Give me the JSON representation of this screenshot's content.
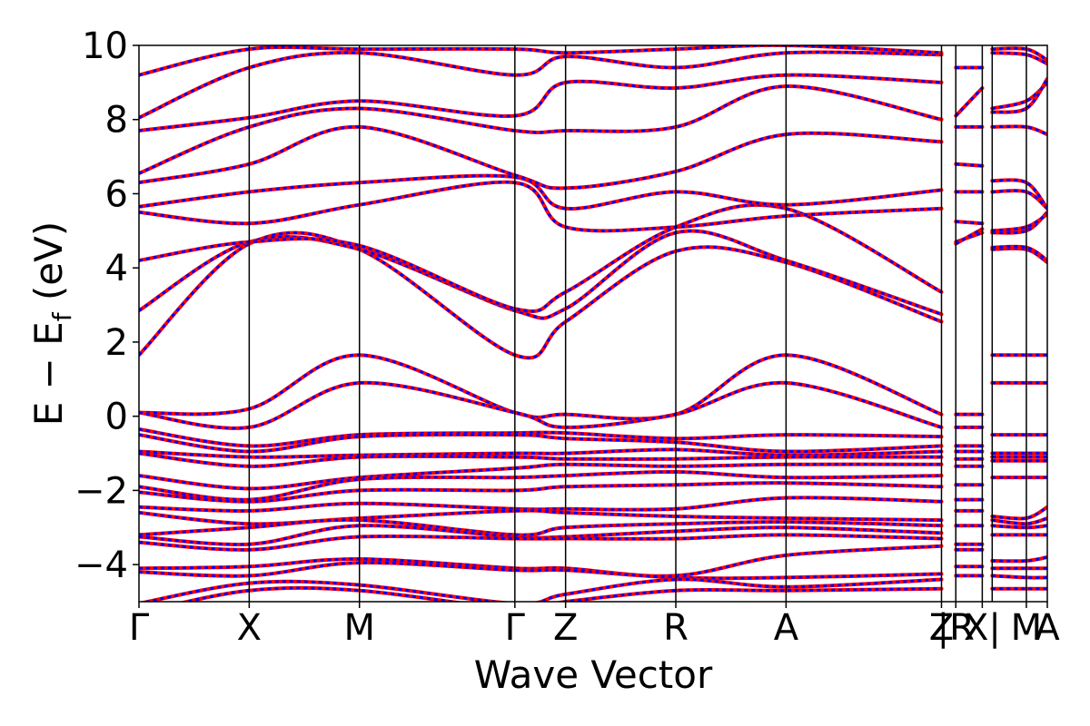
{
  "chart_data": {
    "type": "line",
    "xlabel": "Wave Vector",
    "ylabel": "E − E",
    "ylabel_subscript": "f",
    "ylabel_unit": " (eV)",
    "ylim": [
      -5,
      10
    ],
    "yticks": [
      -4,
      -2,
      0,
      2,
      4,
      6,
      8,
      10
    ],
    "ytick_labels": [
      "−4",
      "−2",
      "0",
      "2",
      "4",
      "6",
      "8",
      "10"
    ],
    "kpath": [
      {
        "label": "Γ",
        "x": 0.0
      },
      {
        "label": "X",
        "x": 1.0
      },
      {
        "label": "M",
        "x": 2.0
      },
      {
        "label": "Γ",
        "x": 3.41
      },
      {
        "label": "Z",
        "x": 3.87
      },
      {
        "label": "R",
        "x": 4.87
      },
      {
        "label": "A",
        "x": 5.87
      },
      {
        "label": "Z",
        "x": 7.28
      },
      {
        "label": "|R",
        "x": 7.41
      },
      {
        "label": "X|",
        "x": 7.65
      },
      {
        "label": "M",
        "x": 8.05
      },
      {
        "label": "A",
        "x": 8.24
      }
    ],
    "segment_breaks": [
      7.28,
      7.74
    ],
    "xlim": [
      0,
      8.24
    ],
    "grid": false,
    "series": [
      {
        "color": "#ff0000",
        "style": "solid",
        "width": 4
      },
      {
        "color": "#0000ff",
        "style": "dashed",
        "width": 3
      }
    ],
    "bands": [
      {
        "x": [
          0,
          1,
          2,
          3.41,
          3.87,
          4.87,
          5.87,
          7.28
        ],
        "y": [
          1.65,
          4.65,
          4.5,
          1.65,
          2.55,
          4.45,
          4.15,
          2.55
        ]
      },
      {
        "x": [
          0,
          1,
          2,
          3.41,
          3.87,
          4.87,
          5.87,
          7.28
        ],
        "y": [
          2.85,
          4.7,
          4.5,
          2.85,
          2.9,
          4.95,
          4.2,
          2.75
        ]
      },
      {
        "x": [
          0,
          1,
          2,
          3.41,
          3.87,
          4.87,
          5.87,
          7.28
        ],
        "y": [
          4.2,
          4.7,
          4.6,
          2.9,
          3.35,
          5.1,
          5.6,
          3.35
        ]
      },
      {
        "x": [
          0,
          1,
          2,
          3.41,
          3.87,
          4.87,
          5.87,
          7.28
        ],
        "y": [
          5.5,
          5.2,
          5.7,
          6.3,
          5.1,
          5.1,
          5.4,
          5.6
        ]
      },
      {
        "x": [
          0,
          1,
          2,
          3.41,
          3.87,
          4.87,
          5.87,
          7.28
        ],
        "y": [
          5.65,
          6.05,
          6.3,
          6.45,
          5.6,
          6.05,
          5.7,
          6.1
        ]
      },
      {
        "x": [
          0,
          1,
          2,
          3.41,
          3.87,
          4.87,
          5.87,
          7.28
        ],
        "y": [
          6.3,
          6.8,
          7.8,
          6.5,
          6.15,
          6.6,
          7.6,
          7.4
        ]
      },
      {
        "x": [
          0,
          1,
          2,
          3.41,
          3.87,
          4.87,
          5.87,
          7.28
        ],
        "y": [
          6.55,
          7.8,
          8.3,
          7.7,
          7.7,
          7.8,
          8.9,
          8.0
        ]
      },
      {
        "x": [
          0,
          1,
          2,
          3.41,
          3.87,
          4.87,
          5.87,
          7.28
        ],
        "y": [
          7.7,
          8.05,
          8.5,
          8.1,
          9.0,
          8.85,
          9.2,
          9.0
        ]
      },
      {
        "x": [
          0,
          1,
          2,
          3.41,
          3.87,
          4.87,
          5.87,
          7.28
        ],
        "y": [
          8.05,
          9.4,
          9.8,
          9.2,
          9.7,
          9.4,
          9.8,
          9.75
        ]
      },
      {
        "x": [
          0,
          1,
          2,
          3.41,
          3.87,
          4.87,
          5.87,
          7.28
        ],
        "y": [
          9.2,
          9.9,
          9.9,
          9.9,
          9.8,
          9.9,
          10.0,
          9.8
        ]
      },
      {
        "x": [
          0,
          1,
          2,
          3.41,
          3.87,
          4.87,
          5.87,
          7.28
        ],
        "y": [
          0.1,
          0.2,
          1.65,
          0.1,
          0.05,
          0.05,
          1.65,
          0.05
        ]
      },
      {
        "x": [
          0,
          1,
          2,
          3.41,
          3.87,
          4.87,
          5.87,
          7.28
        ],
        "y": [
          0.1,
          -0.3,
          0.9,
          0.1,
          -0.3,
          0.05,
          0.9,
          -0.3
        ]
      },
      {
        "x": [
          0,
          1,
          2,
          3.41,
          3.87,
          4.87,
          5.87,
          7.28
        ],
        "y": [
          -0.35,
          -0.8,
          -0.5,
          -0.45,
          -0.45,
          -0.6,
          -0.5,
          -0.55
        ]
      },
      {
        "x": [
          0,
          1,
          2,
          3.41,
          3.87,
          4.87,
          5.87,
          7.28
        ],
        "y": [
          -0.5,
          -0.95,
          -0.55,
          -0.5,
          -0.6,
          -0.7,
          -0.95,
          -0.8
        ]
      },
      {
        "x": [
          0,
          1,
          2,
          3.41,
          3.87,
          4.87,
          5.87,
          7.28
        ],
        "y": [
          -0.95,
          -1.1,
          -1.05,
          -1.0,
          -1.0,
          -0.9,
          -1.05,
          -0.95
        ]
      },
      {
        "x": [
          0,
          1,
          2,
          3.41,
          3.87,
          4.87,
          5.87,
          7.28
        ],
        "y": [
          -1.0,
          -1.35,
          -1.1,
          -1.1,
          -1.15,
          -1.15,
          -1.1,
          -1.1
        ]
      },
      {
        "x": [
          0,
          1,
          2,
          3.41,
          3.87,
          4.87,
          5.87,
          7.28
        ],
        "y": [
          -1.6,
          -1.95,
          -1.65,
          -1.4,
          -1.3,
          -1.35,
          -1.3,
          -1.3
        ]
      },
      {
        "x": [
          0,
          1,
          2,
          3.41,
          3.87,
          4.87,
          5.87,
          7.28
        ],
        "y": [
          -1.9,
          -2.25,
          -1.7,
          -1.65,
          -1.6,
          -1.5,
          -1.65,
          -1.6
        ]
      },
      {
        "x": [
          0,
          1,
          2,
          3.41,
          3.87,
          4.87,
          5.87,
          7.28
        ],
        "y": [
          -2.05,
          -2.3,
          -2.0,
          -2.0,
          -1.9,
          -1.85,
          -1.8,
          -1.9
        ]
      },
      {
        "x": [
          0,
          1,
          2,
          3.41,
          3.87,
          4.87,
          5.87,
          7.28
        ],
        "y": [
          -2.45,
          -2.55,
          -2.35,
          -2.5,
          -2.5,
          -2.5,
          -2.2,
          -2.3
        ]
      },
      {
        "x": [
          0,
          1,
          2,
          3.41,
          3.87,
          4.87,
          5.87,
          7.28
        ],
        "y": [
          -2.6,
          -2.9,
          -2.75,
          -2.55,
          -2.6,
          -2.7,
          -2.75,
          -2.8
        ]
      },
      {
        "x": [
          0,
          1,
          2,
          3.41,
          3.87,
          4.87,
          5.87,
          7.28
        ],
        "y": [
          -3.2,
          -3.0,
          -2.8,
          -3.2,
          -3.0,
          -2.9,
          -2.85,
          -2.95
        ]
      },
      {
        "x": [
          0,
          1,
          2,
          3.41,
          3.87,
          4.87,
          5.87,
          7.28
        ],
        "y": [
          -3.25,
          -3.45,
          -2.95,
          -3.25,
          -3.25,
          -3.1,
          -3.0,
          -3.15
        ]
      },
      {
        "x": [
          0,
          1,
          2,
          3.41,
          3.87,
          4.87,
          5.87,
          7.28
        ],
        "y": [
          -3.4,
          -3.6,
          -3.25,
          -3.3,
          -3.3,
          -3.3,
          -3.2,
          -3.3
        ]
      },
      {
        "x": [
          0,
          1,
          2,
          3.41,
          3.87,
          4.87,
          5.87,
          7.28
        ],
        "y": [
          -4.1,
          -4.05,
          -3.85,
          -4.1,
          -4.1,
          -4.3,
          -3.75,
          -3.5
        ]
      },
      {
        "x": [
          0,
          1,
          2,
          3.41,
          3.87,
          4.87,
          5.87,
          7.28
        ],
        "y": [
          -4.2,
          -4.3,
          -3.95,
          -4.15,
          -4.15,
          -4.35,
          -4.35,
          -4.25
        ]
      },
      {
        "x": [
          0,
          1,
          2,
          3.41,
          3.87,
          4.87,
          5.87,
          7.28
        ],
        "y": [
          -5.05,
          -4.5,
          -4.55,
          -5.05,
          -4.8,
          -4.4,
          -4.6,
          -4.4
        ]
      },
      {
        "x": [
          0,
          1,
          2,
          3.41,
          3.87,
          4.87,
          5.87,
          7.28
        ],
        "y": [
          -5.3,
          -4.7,
          -4.7,
          -5.2,
          -5.0,
          -4.7,
          -4.7,
          -4.65
        ]
      },
      {
        "x": [
          7.41,
          7.65
        ],
        "y": [
          9.4,
          9.4
        ]
      },
      {
        "x": [
          7.41,
          7.65
        ],
        "y": [
          8.1,
          8.85
        ]
      },
      {
        "x": [
          7.41,
          7.65
        ],
        "y": [
          7.8,
          7.8
        ]
      },
      {
        "x": [
          7.41,
          7.65
        ],
        "y": [
          6.8,
          6.75
        ]
      },
      {
        "x": [
          7.41,
          7.65
        ],
        "y": [
          6.05,
          6.05
        ]
      },
      {
        "x": [
          7.41,
          7.65
        ],
        "y": [
          5.25,
          5.2
        ]
      },
      {
        "x": [
          7.41,
          7.65
        ],
        "y": [
          4.7,
          4.95
        ]
      },
      {
        "x": [
          7.41,
          7.65
        ],
        "y": [
          4.65,
          5.05
        ]
      },
      {
        "x": [
          7.41,
          7.65
        ],
        "y": [
          0.05,
          0.05
        ]
      },
      {
        "x": [
          7.41,
          7.65
        ],
        "y": [
          -0.3,
          -0.3
        ]
      },
      {
        "x": [
          7.41,
          7.65
        ],
        "y": [
          -0.8,
          -0.8
        ]
      },
      {
        "x": [
          7.41,
          7.65
        ],
        "y": [
          -0.95,
          -0.95
        ]
      },
      {
        "x": [
          7.41,
          7.65
        ],
        "y": [
          -1.15,
          -1.15
        ]
      },
      {
        "x": [
          7.41,
          7.65
        ],
        "y": [
          -1.35,
          -1.35
        ]
      },
      {
        "x": [
          7.41,
          7.65
        ],
        "y": [
          -1.85,
          -1.85
        ]
      },
      {
        "x": [
          7.41,
          7.65
        ],
        "y": [
          -2.25,
          -2.25
        ]
      },
      {
        "x": [
          7.41,
          7.65
        ],
        "y": [
          -2.55,
          -2.55
        ]
      },
      {
        "x": [
          7.41,
          7.65
        ],
        "y": [
          -2.95,
          -2.95
        ]
      },
      {
        "x": [
          7.41,
          7.65
        ],
        "y": [
          -3.45,
          -3.45
        ]
      },
      {
        "x": [
          7.41,
          7.65
        ],
        "y": [
          -3.6,
          -3.6
        ]
      },
      {
        "x": [
          7.41,
          7.65
        ],
        "y": [
          -4.05,
          -4.05
        ]
      },
      {
        "x": [
          7.41,
          7.65
        ],
        "y": [
          -4.3,
          -4.3
        ]
      },
      {
        "x": [
          7.74,
          8.05,
          8.24
        ],
        "y": [
          9.9,
          9.9,
          9.6
        ]
      },
      {
        "x": [
          7.74,
          8.05,
          8.24
        ],
        "y": [
          9.8,
          9.75,
          9.5
        ]
      },
      {
        "x": [
          7.74,
          8.05,
          8.24
        ],
        "y": [
          8.3,
          8.5,
          9.0
        ]
      },
      {
        "x": [
          7.74,
          8.05,
          8.24
        ],
        "y": [
          8.2,
          8.3,
          9.1
        ]
      },
      {
        "x": [
          7.74,
          8.05,
          8.24
        ],
        "y": [
          7.8,
          7.8,
          7.6
        ]
      },
      {
        "x": [
          7.74,
          8.05,
          8.24
        ],
        "y": [
          6.35,
          6.3,
          5.6
        ]
      },
      {
        "x": [
          7.74,
          8.05,
          8.24
        ],
        "y": [
          6.05,
          6.05,
          5.6
        ]
      },
      {
        "x": [
          7.74,
          8.05,
          8.24
        ],
        "y": [
          4.95,
          5.0,
          5.5
        ]
      },
      {
        "x": [
          7.74,
          8.05,
          8.24
        ],
        "y": [
          5.0,
          5.1,
          5.45
        ]
      },
      {
        "x": [
          7.74,
          8.05,
          8.24
        ],
        "y": [
          4.5,
          4.5,
          4.15
        ]
      },
      {
        "x": [
          7.74,
          8.05,
          8.24
        ],
        "y": [
          4.55,
          4.55,
          4.2
        ]
      },
      {
        "x": [
          7.74,
          8.05,
          8.24
        ],
        "y": [
          1.65,
          1.65,
          1.65
        ]
      },
      {
        "x": [
          7.74,
          8.05,
          8.24
        ],
        "y": [
          0.9,
          0.9,
          0.9
        ]
      },
      {
        "x": [
          7.74,
          8.05,
          8.24
        ],
        "y": [
          -0.5,
          -0.5,
          -0.5
        ]
      },
      {
        "x": [
          7.74,
          8.05,
          8.24
        ],
        "y": [
          -1.0,
          -1.0,
          -1.0
        ]
      },
      {
        "x": [
          7.74,
          8.05,
          8.24
        ],
        "y": [
          -1.1,
          -1.1,
          -1.1
        ]
      },
      {
        "x": [
          7.74,
          8.05,
          8.24
        ],
        "y": [
          -1.2,
          -1.2,
          -1.2
        ]
      },
      {
        "x": [
          7.74,
          8.05,
          8.24
        ],
        "y": [
          -1.65,
          -1.65,
          -1.65
        ]
      },
      {
        "x": [
          7.74,
          8.05,
          8.24
        ],
        "y": [
          -2.7,
          -2.75,
          -2.45
        ]
      },
      {
        "x": [
          7.74,
          8.05,
          8.24
        ],
        "y": [
          -2.8,
          -2.9,
          -2.75
        ]
      },
      {
        "x": [
          7.74,
          8.05,
          8.24
        ],
        "y": [
          -2.95,
          -3.0,
          -2.95
        ]
      },
      {
        "x": [
          7.74,
          8.05,
          8.24
        ],
        "y": [
          -3.2,
          -3.2,
          -3.2
        ]
      },
      {
        "x": [
          7.74,
          8.05,
          8.24
        ],
        "y": [
          -3.9,
          -3.9,
          -3.8
        ]
      },
      {
        "x": [
          7.74,
          8.05,
          8.24
        ],
        "y": [
          -4.1,
          -4.1,
          -4.1
        ]
      },
      {
        "x": [
          7.74,
          8.05,
          8.24
        ],
        "y": [
          -4.3,
          -4.35,
          -4.35
        ]
      },
      {
        "x": [
          7.74,
          8.05,
          8.24
        ],
        "y": [
          -4.65,
          -4.65,
          -4.65
        ]
      }
    ]
  }
}
